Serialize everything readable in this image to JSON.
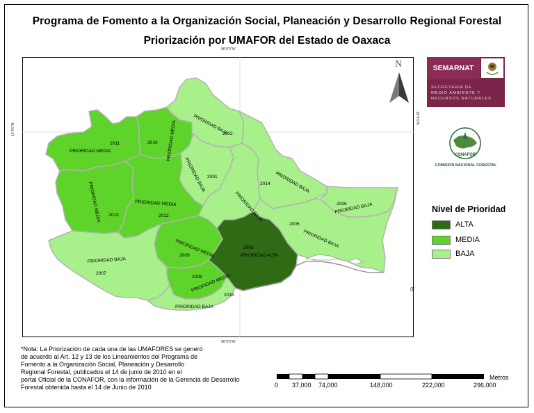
{
  "title": {
    "line1": "Programa de Fomento a la Organización Social, Planeación y Desarrollo Regional Forestal",
    "line2": "Priorización por UMAFOR del Estado de Oaxaca"
  },
  "graticule": {
    "top": "96°0'0\"W",
    "bottom": "96°0'0\"W",
    "left": "16°0'0\"N",
    "right": "16°0'0\"N",
    "right_cut": "0'"
  },
  "north_arrow": {
    "letter": "N"
  },
  "colors": {
    "alta": "#2e6b14",
    "media": "#5ed32a",
    "baja": "#a8f08a",
    "border": "#b3b3b3"
  },
  "regions": [
    {
      "code": "2011",
      "label": "PRIORIDAD MEDIA",
      "priority": "MEDIA"
    },
    {
      "code": "2010",
      "label": "PRIORIDAD MEDIA",
      "priority": "MEDIA"
    },
    {
      "code": "2002",
      "label": "PRIORIDAD BAJA",
      "priority": "BAJA"
    },
    {
      "code": "2001",
      "label": "PRIORIDAD BAJA",
      "priority": "BAJA"
    },
    {
      "code": "2014",
      "label": "PRIORIDAD BAJA",
      "priority": "BAJA"
    },
    {
      "code": "2006",
      "label": "PRIORIDAD BAJA",
      "priority": "BAJA"
    },
    {
      "code": "2013",
      "label": "PRIORIDAD MEDIA",
      "priority": "MEDIA"
    },
    {
      "code": "2012",
      "label": "PRIORIDAD MEDIA",
      "priority": "MEDIA"
    },
    {
      "code": "2005",
      "label": "PRIORIDAD BAJA",
      "priority": "BAJA"
    },
    {
      "code": "2003",
      "label": "PRIORIDAD ALTA",
      "priority": "ALTA"
    },
    {
      "code": "2009",
      "label": "PRIORIDAD MEDIA",
      "priority": "MEDIA"
    },
    {
      "code": "2007",
      "label": "PRIORIDAD BAJA",
      "priority": "BAJA"
    },
    {
      "code": "2008",
      "label": "PRIORIDAD MEDIA",
      "priority": "MEDIA"
    },
    {
      "code": "2015",
      "label": "PRIORIDAD BAJA",
      "priority": "BAJA"
    },
    {
      "code": "2004",
      "label": "PRIORIDAD BAJA",
      "priority": "BAJA"
    }
  ],
  "legend": {
    "title": "Nivel de Prioridad",
    "items": [
      {
        "label": "ALTA",
        "color": "#2e6b14"
      },
      {
        "label": "MEDIA",
        "color": "#5ed32a"
      },
      {
        "label": "BAJA",
        "color": "#a8f08a"
      }
    ]
  },
  "logos": {
    "semarnat_name": "SEMARNAT",
    "semarnat_sub": [
      "SECRETARÍA DE",
      "MEDIO AMBIENTE Y",
      "RECURSOS NATURALES"
    ],
    "conafor_name": "COMISIÓN NACIONAL FORESTAL",
    "conafor_mark": "CONAFOR"
  },
  "note": [
    "*Nota: La Priorización de cada una de las UMAFORES se generó",
    "de acuerdo al Art. 12  y 13 de los Lineamientos del Programa de",
    "Fomento a la Organización Social, Planeación y Desarrollo",
    "Regional Forestal, publicados el 14 de junio de 2010 en el",
    "portal Oficial de la CONAFOR, con la información de la Gerencia de Desarrollo",
    "Forestal obtenida hasta el 14 de Junio de 2010"
  ],
  "scale": {
    "unit": "Metros",
    "labels": [
      "0",
      "37,000",
      "74,000",
      "148,000",
      "222,000",
      "296,000"
    ]
  }
}
